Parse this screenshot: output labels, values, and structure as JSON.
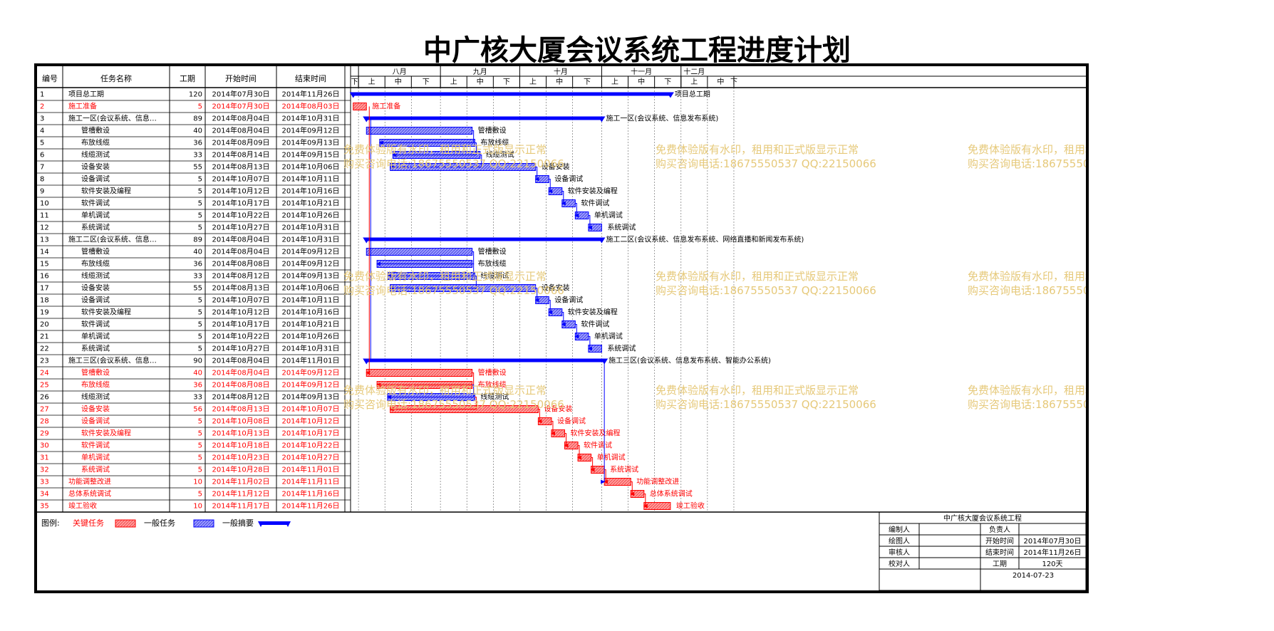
{
  "title": "中广核大厦会议系统工程进度计划",
  "columns": {
    "id": "编号",
    "name": "任务名称",
    "dur": "工期",
    "start": "开始时间",
    "end": "结束时间"
  },
  "months": [
    "八月",
    "九月",
    "十月",
    "十一月",
    "十二月"
  ],
  "periods": {
    "first": "下",
    "labels": [
      "上",
      "中",
      "下"
    ]
  },
  "legend": {
    "prefix": "图例:",
    "critical": "关键任务",
    "normal": "一般任务",
    "summary": "一般摘要"
  },
  "colors": {
    "critical": "#ff0000",
    "normal": "#0000ff",
    "critical_fill": "#ff9a9a",
    "normal_fill": "#9a9aff",
    "watermark": "#e6c97a"
  },
  "watermark": {
    "line1": "免费体验版有水印，租用和正式版显示正常",
    "line2": "购买咨询电话:18675550537 QQ:22150066"
  },
  "info": {
    "project": "中广核大厦会议系统工程",
    "rows": [
      [
        "编制人",
        "",
        "负责人",
        ""
      ],
      [
        "绘图人",
        "",
        "开始时间",
        "2014年07月30日"
      ],
      [
        "审核人",
        "",
        "结束时间",
        "2014年11月26日"
      ],
      [
        "校对人",
        "",
        "工期",
        "120天"
      ]
    ],
    "date": "2014-07-23"
  },
  "chart_data": {
    "type": "gantt",
    "title": "中广核大厦会议系统工程进度计划",
    "axis_start": "2014-07-29",
    "tasks": [
      {
        "id": "1",
        "name": "项目总工期",
        "dur": "120",
        "start": "2014年07月30日",
        "end": "2014年11月26日",
        "type": "summary",
        "critical": false
      },
      {
        "id": "2",
        "name": "施工准备",
        "dur": "5",
        "start": "2014年07月30日",
        "end": "2014年08月03日",
        "type": "task",
        "critical": true
      },
      {
        "id": "3",
        "name": "施工一区(会议系统、信息发布系统)",
        "dur": "89",
        "start": "2014年08月04日",
        "end": "2014年10月31日",
        "type": "summary",
        "critical": false
      },
      {
        "id": "4",
        "name": "管槽敷设",
        "dur": "40",
        "start": "2014年08月04日",
        "end": "2014年09月12日",
        "type": "task",
        "critical": false
      },
      {
        "id": "5",
        "name": "布放线缆",
        "dur": "36",
        "start": "2014年08月09日",
        "end": "2014年09月13日",
        "type": "task",
        "critical": false
      },
      {
        "id": "6",
        "name": "线缆测试",
        "dur": "33",
        "start": "2014年08月14日",
        "end": "2014年09月15日",
        "type": "task",
        "critical": false
      },
      {
        "id": "7",
        "name": "设备安装",
        "dur": "55",
        "start": "2014年08月13日",
        "end": "2014年10月06日",
        "type": "task",
        "critical": false
      },
      {
        "id": "8",
        "name": "设备调试",
        "dur": "5",
        "start": "2014年10月07日",
        "end": "2014年10月11日",
        "type": "task",
        "critical": false
      },
      {
        "id": "9",
        "name": "软件安装及编程",
        "dur": "5",
        "start": "2014年10月12日",
        "end": "2014年10月16日",
        "type": "task",
        "critical": false
      },
      {
        "id": "10",
        "name": "软件调试",
        "dur": "5",
        "start": "2014年10月17日",
        "end": "2014年10月21日",
        "type": "task",
        "critical": false
      },
      {
        "id": "11",
        "name": "单机调试",
        "dur": "5",
        "start": "2014年10月22日",
        "end": "2014年10月26日",
        "type": "task",
        "critical": false
      },
      {
        "id": "12",
        "name": "系统调试",
        "dur": "5",
        "start": "2014年10月27日",
        "end": "2014年10月31日",
        "type": "task",
        "critical": false
      },
      {
        "id": "13",
        "name": "施工二区(会议系统、信息发布系统、网络直播和新闻发布系统)",
        "dur": "89",
        "start": "2014年08月04日",
        "end": "2014年10月31日",
        "type": "summary",
        "critical": false
      },
      {
        "id": "14",
        "name": "管槽敷设",
        "dur": "40",
        "start": "2014年08月04日",
        "end": "2014年09月12日",
        "type": "task",
        "critical": false
      },
      {
        "id": "15",
        "name": "布放线缆",
        "dur": "36",
        "start": "2014年08月08日",
        "end": "2014年09月12日",
        "type": "task",
        "critical": false
      },
      {
        "id": "16",
        "name": "线缆测试",
        "dur": "33",
        "start": "2014年08月12日",
        "end": "2014年09月13日",
        "type": "task",
        "critical": false
      },
      {
        "id": "17",
        "name": "设备安装",
        "dur": "55",
        "start": "2014年08月13日",
        "end": "2014年10月06日",
        "type": "task",
        "critical": false
      },
      {
        "id": "18",
        "name": "设备调试",
        "dur": "5",
        "start": "2014年10月07日",
        "end": "2014年10月11日",
        "type": "task",
        "critical": false
      },
      {
        "id": "19",
        "name": "软件安装及编程",
        "dur": "5",
        "start": "2014年10月12日",
        "end": "2014年10月16日",
        "type": "task",
        "critical": false
      },
      {
        "id": "20",
        "name": "软件调试",
        "dur": "5",
        "start": "2014年10月17日",
        "end": "2014年10月21日",
        "type": "task",
        "critical": false
      },
      {
        "id": "21",
        "name": "单机调试",
        "dur": "5",
        "start": "2014年10月22日",
        "end": "2014年10月26日",
        "type": "task",
        "critical": false
      },
      {
        "id": "22",
        "name": "系统调试",
        "dur": "5",
        "start": "2014年10月27日",
        "end": "2014年10月31日",
        "type": "task",
        "critical": false
      },
      {
        "id": "23",
        "name": "施工三区(会议系统、信息发布系统、智能办公系统)",
        "dur": "90",
        "start": "2014年08月04日",
        "end": "2014年11月01日",
        "type": "summary",
        "critical": false
      },
      {
        "id": "24",
        "name": "管槽敷设",
        "dur": "40",
        "start": "2014年08月04日",
        "end": "2014年09月12日",
        "type": "task",
        "critical": true
      },
      {
        "id": "25",
        "name": "布放线缆",
        "dur": "36",
        "start": "2014年08月08日",
        "end": "2014年09月12日",
        "type": "task",
        "critical": true
      },
      {
        "id": "26",
        "name": "线缆测试",
        "dur": "33",
        "start": "2014年08月12日",
        "end": "2014年09月13日",
        "type": "task",
        "critical": false
      },
      {
        "id": "27",
        "name": "设备安装",
        "dur": "56",
        "start": "2014年08月13日",
        "end": "2014年10月07日",
        "type": "task",
        "critical": true
      },
      {
        "id": "28",
        "name": "设备调试",
        "dur": "5",
        "start": "2014年10月08日",
        "end": "2014年10月12日",
        "type": "task",
        "critical": true
      },
      {
        "id": "29",
        "name": "软件安装及编程",
        "dur": "5",
        "start": "2014年10月13日",
        "end": "2014年10月17日",
        "type": "task",
        "critical": true
      },
      {
        "id": "30",
        "name": "软件调试",
        "dur": "5",
        "start": "2014年10月18日",
        "end": "2014年10月22日",
        "type": "task",
        "critical": true
      },
      {
        "id": "31",
        "name": "单机调试",
        "dur": "5",
        "start": "2014年10月23日",
        "end": "2014年10月27日",
        "type": "task",
        "critical": true
      },
      {
        "id": "32",
        "name": "系统调试",
        "dur": "5",
        "start": "2014年10月28日",
        "end": "2014年11月01日",
        "type": "task",
        "critical": true
      },
      {
        "id": "33",
        "name": "功能调整改进",
        "dur": "10",
        "start": "2014年11月02日",
        "end": "2014年11月11日",
        "type": "task",
        "critical": true
      },
      {
        "id": "34",
        "name": "总体系统调试",
        "dur": "5",
        "start": "2014年11月12日",
        "end": "2014年11月16日",
        "type": "task",
        "critical": true
      },
      {
        "id": "35",
        "name": "竣工验收",
        "dur": "10",
        "start": "2014年11月17日",
        "end": "2014年11月26日",
        "type": "task",
        "critical": true
      }
    ]
  }
}
